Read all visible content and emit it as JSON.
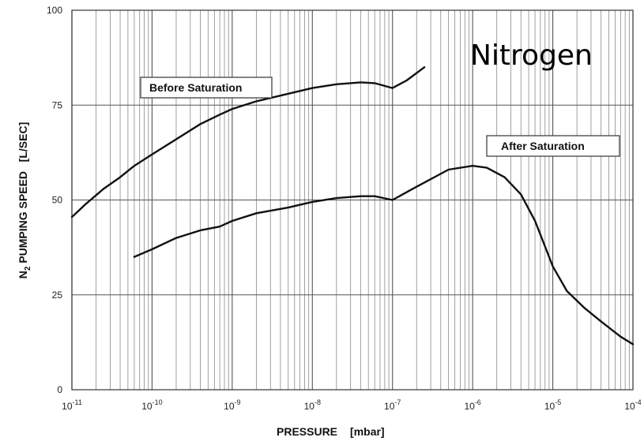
{
  "chart_data": {
    "type": "line",
    "title": "Nitrogen",
    "xlabel_main": "PRESSURE",
    "xlabel_unit": "[mbar]",
    "ylabel_prefix": "N",
    "ylabel_sub": "2",
    "ylabel_rest": " PUMPING SPEED   [L/SEC]",
    "xscale": "log",
    "xlim": [
      1e-11,
      0.0001
    ],
    "ylim": [
      0,
      100
    ],
    "grid": true,
    "y_ticks": [
      "0",
      "25",
      "50",
      "75",
      "100"
    ],
    "x_ticks": [
      {
        "base": "10",
        "exp": "-11"
      },
      {
        "base": "10",
        "exp": "-10"
      },
      {
        "base": "10",
        "exp": "-9"
      },
      {
        "base": "10",
        "exp": "-8"
      },
      {
        "base": "10",
        "exp": "-7"
      },
      {
        "base": "10",
        "exp": "-6"
      },
      {
        "base": "10",
        "exp": "-5"
      },
      {
        "base": "10",
        "exp": "-4"
      }
    ],
    "series": [
      {
        "name": "Before Saturation",
        "x": [
          1e-11,
          1.5e-11,
          2.5e-11,
          4e-11,
          6e-11,
          1e-10,
          2e-10,
          4e-10,
          7e-10,
          1e-09,
          2e-09,
          5e-09,
          1e-08,
          2e-08,
          4e-08,
          6e-08,
          1e-07,
          1.5e-07,
          2.5e-07
        ],
        "y": [
          45.5,
          49,
          53,
          56,
          59,
          62,
          66,
          70,
          72.5,
          74,
          76,
          78,
          79.5,
          80.5,
          81,
          80.8,
          79.5,
          81.5,
          85
        ]
      },
      {
        "name": "After Saturation",
        "x": [
          6e-11,
          1e-10,
          2e-10,
          4e-10,
          7e-10,
          1e-09,
          2e-09,
          5e-09,
          1e-08,
          2e-08,
          4e-08,
          6e-08,
          1e-07,
          2e-07,
          5e-07,
          1e-06,
          1.5e-06,
          2.5e-06,
          4e-06,
          6e-06,
          1e-05,
          1.5e-05,
          2.5e-05,
          4e-05,
          7e-05,
          0.0001
        ],
        "y": [
          35,
          37,
          40,
          42,
          43,
          44.5,
          46.5,
          48,
          49.5,
          50.5,
          51,
          51,
          50,
          53.5,
          58,
          59,
          58.5,
          56,
          51.5,
          44.5,
          32.5,
          26,
          21.5,
          18,
          14,
          12
        ]
      }
    ]
  }
}
